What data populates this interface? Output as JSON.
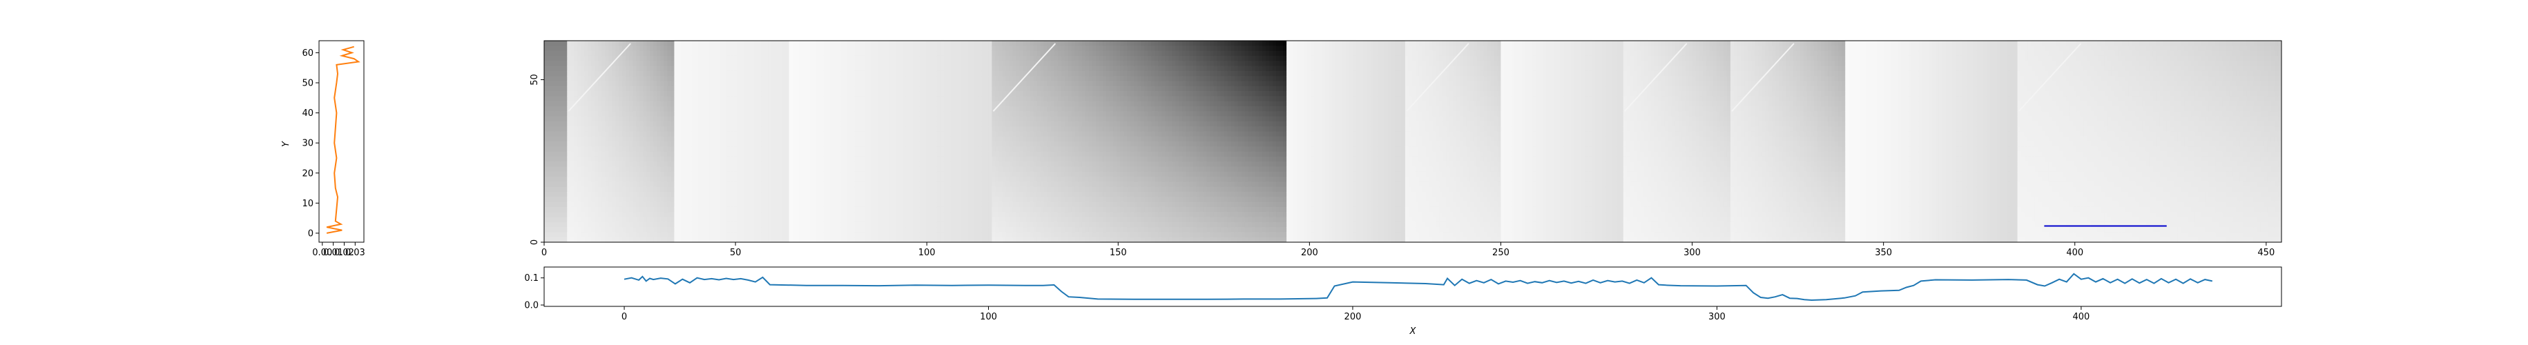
{
  "chart_data": [
    {
      "type": "line",
      "ylabel": "Y",
      "xlim": [
        -0.003,
        0.038
      ],
      "ylim": [
        -3,
        64
      ],
      "x_ticks": [
        0.0,
        0.01,
        0.02,
        0.03
      ],
      "x_tick_labels": [
        "0.00",
        "0.01",
        "0.02",
        "0.03"
      ],
      "y_ticks": [
        0,
        10,
        20,
        30,
        40,
        50,
        60
      ],
      "y_tick_labels": [
        "0",
        "10",
        "20",
        "30",
        "40",
        "50",
        "60"
      ],
      "colors": {
        "line": "#ff7f0e"
      },
      "series": [
        {
          "points": [
            [
              0.004,
              0
            ],
            [
              0.018,
              1
            ],
            [
              0.004,
              2
            ],
            [
              0.017,
              3
            ],
            [
              0.012,
              4
            ],
            [
              0.013,
              8
            ],
            [
              0.014,
              12
            ],
            [
              0.012,
              15
            ],
            [
              0.011,
              20
            ],
            [
              0.013,
              25
            ],
            [
              0.011,
              30
            ],
            [
              0.012,
              35
            ],
            [
              0.013,
              40
            ],
            [
              0.011,
              45
            ],
            [
              0.013,
              50
            ],
            [
              0.014,
              53
            ],
            [
              0.013,
              56
            ],
            [
              0.033,
              57
            ],
            [
              0.029,
              58
            ],
            [
              0.018,
              59
            ],
            [
              0.027,
              60
            ],
            [
              0.019,
              61
            ],
            [
              0.029,
              62
            ]
          ]
        }
      ]
    },
    {
      "type": "heatmap",
      "colormap": "gray_r",
      "xlim": [
        0,
        454
      ],
      "ylim": [
        0,
        62
      ],
      "x_ticks": [
        0,
        50,
        100,
        150,
        200,
        250,
        300,
        350,
        400,
        450
      ],
      "x_tick_labels": [
        "0",
        "50",
        "100",
        "150",
        "200",
        "250",
        "300",
        "350",
        "400",
        "450"
      ],
      "y_ticks": [
        0,
        50
      ],
      "y_tick_labels": [
        "0",
        "50"
      ],
      "segments": [
        {
          "x0": 0,
          "x1": 6,
          "kind": "gradV",
          "top": 0.5,
          "bot": 0.1
        },
        {
          "x0": 6,
          "x1": 34,
          "kind": "diag",
          "lo": 0.04,
          "hi": 0.38
        },
        {
          "x0": 34,
          "x1": 64,
          "kind": "flat",
          "lo": 0.03,
          "hi": 0.08
        },
        {
          "x0": 64,
          "x1": 117,
          "kind": "flat",
          "lo": 0.02,
          "hi": 0.12
        },
        {
          "x0": 117,
          "x1": 194,
          "kind": "diag",
          "lo": 0.06,
          "hi": 1.0
        },
        {
          "x0": 194,
          "x1": 225,
          "kind": "flat",
          "lo": 0.03,
          "hi": 0.14
        },
        {
          "x0": 225,
          "x1": 250,
          "kind": "diag",
          "lo": 0.04,
          "hi": 0.18
        },
        {
          "x0": 250,
          "x1": 282,
          "kind": "flat",
          "lo": 0.03,
          "hi": 0.12
        },
        {
          "x0": 282,
          "x1": 310,
          "kind": "diag",
          "lo": 0.04,
          "hi": 0.22
        },
        {
          "x0": 310,
          "x1": 340,
          "kind": "diag",
          "lo": 0.05,
          "hi": 0.32
        },
        {
          "x0": 340,
          "x1": 352,
          "kind": "flat",
          "lo": 0.02,
          "hi": 0.04
        },
        {
          "x0": 352,
          "x1": 385,
          "kind": "flat",
          "lo": 0.04,
          "hi": 0.14
        },
        {
          "x0": 385,
          "x1": 454,
          "kind": "diag",
          "lo": 0.04,
          "hi": 0.2
        }
      ],
      "overlay_line": {
        "x": [
          392,
          424
        ],
        "y": [
          5,
          5
        ],
        "color": "#0000cc"
      },
      "colors": {
        "overlay": "#0000cc"
      }
    },
    {
      "type": "line",
      "xlabel": "X",
      "xlim": [
        -22,
        455
      ],
      "ylim": [
        -0.005,
        0.14
      ],
      "x_ticks": [
        0,
        100,
        200,
        300,
        400
      ],
      "x_tick_labels": [
        "0",
        "100",
        "200",
        "300",
        "400"
      ],
      "y_ticks": [
        0.0,
        0.1
      ],
      "y_tick_labels": [
        "0.0",
        "0.1"
      ],
      "colors": {
        "line": "#1f77b4"
      },
      "series": [
        {
          "x": [
            0,
            2,
            4,
            5,
            6,
            7,
            8,
            10,
            12,
            14,
            16,
            18,
            20,
            22,
            24,
            26,
            28,
            30,
            32,
            34,
            36,
            38,
            40,
            50,
            60,
            70,
            80,
            90,
            100,
            110,
            115,
            118,
            120,
            122,
            125,
            130,
            140,
            150,
            160,
            170,
            180,
            185,
            190,
            193,
            195,
            200,
            210,
            220,
            225,
            226,
            228,
            230,
            232,
            234,
            236,
            238,
            240,
            242,
            244,
            246,
            248,
            250,
            252,
            254,
            256,
            258,
            260,
            262,
            264,
            266,
            268,
            270,
            272,
            274,
            276,
            278,
            280,
            282,
            284,
            286,
            288,
            290,
            300,
            308,
            310,
            312,
            314,
            316,
            318,
            320,
            322,
            324,
            326,
            330,
            335,
            338,
            340,
            345,
            350,
            352,
            354,
            356,
            360,
            370,
            380,
            385,
            388,
            390,
            392,
            394,
            396,
            398,
            400,
            402,
            404,
            406,
            408,
            410,
            412,
            414,
            416,
            418,
            420,
            422,
            424,
            426,
            428,
            430,
            432,
            434,
            436
          ],
          "values": [
            0.095,
            0.1,
            0.092,
            0.105,
            0.088,
            0.098,
            0.094,
            0.099,
            0.096,
            0.078,
            0.095,
            0.082,
            0.1,
            0.094,
            0.097,
            0.093,
            0.098,
            0.094,
            0.097,
            0.092,
            0.085,
            0.102,
            0.075,
            0.072,
            0.072,
            0.071,
            0.073,
            0.072,
            0.073,
            0.072,
            0.072,
            0.074,
            0.05,
            0.03,
            0.028,
            0.022,
            0.021,
            0.021,
            0.021,
            0.022,
            0.022,
            0.023,
            0.024,
            0.026,
            0.07,
            0.085,
            0.082,
            0.079,
            0.075,
            0.098,
            0.072,
            0.095,
            0.08,
            0.09,
            0.082,
            0.094,
            0.078,
            0.088,
            0.084,
            0.09,
            0.08,
            0.086,
            0.082,
            0.09,
            0.083,
            0.088,
            0.081,
            0.087,
            0.08,
            0.092,
            0.082,
            0.09,
            0.085,
            0.088,
            0.08,
            0.092,
            0.082,
            0.1,
            0.075,
            0.073,
            0.072,
            0.071,
            0.07,
            0.072,
            0.045,
            0.028,
            0.025,
            0.03,
            0.038,
            0.025,
            0.024,
            0.02,
            0.018,
            0.02,
            0.026,
            0.034,
            0.048,
            0.052,
            0.054,
            0.065,
            0.072,
            0.088,
            0.093,
            0.092,
            0.094,
            0.092,
            0.075,
            0.07,
            0.082,
            0.095,
            0.085,
            0.115,
            0.095,
            0.1,
            0.085,
            0.097,
            0.082,
            0.095,
            0.08,
            0.096,
            0.081,
            0.094,
            0.08,
            0.097,
            0.082,
            0.095,
            0.08,
            0.096,
            0.082,
            0.094,
            0.088
          ]
        }
      ]
    }
  ]
}
